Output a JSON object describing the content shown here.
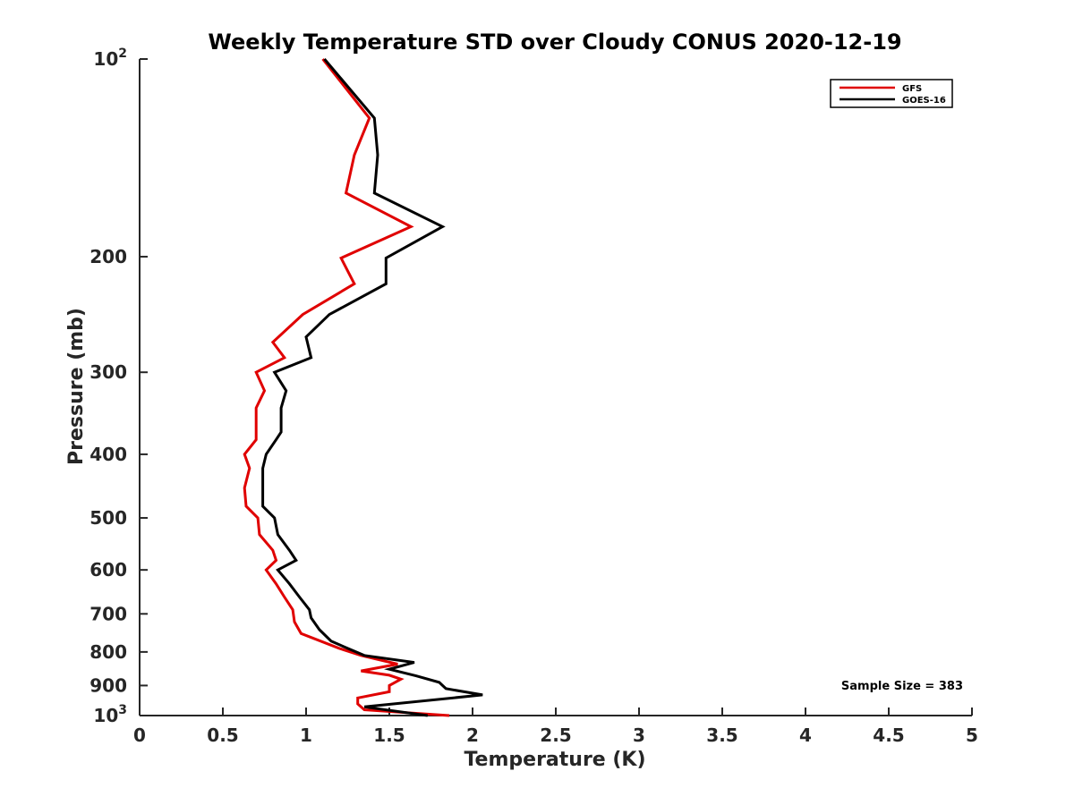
{
  "chart_data": {
    "type": "line",
    "title": "Weekly Temperature STD over Cloudy CONUS 2020-12-19",
    "xlabel": "Temperature (K)",
    "ylabel": "Pressure (mb)",
    "xlim": [
      0,
      5
    ],
    "ylim": [
      100,
      1000
    ],
    "y_scale": "log",
    "y_reversed": true,
    "x_ticks": [
      "0",
      "0.5",
      "1",
      "1.5",
      "2",
      "2.5",
      "3",
      "3.5",
      "4",
      "4.5",
      "5"
    ],
    "y_ticks": [
      {
        "value": 100,
        "label": "10",
        "sup": "2"
      },
      {
        "value": 200,
        "label": "200",
        "sup": ""
      },
      {
        "value": 300,
        "label": "300",
        "sup": ""
      },
      {
        "value": 400,
        "label": "400",
        "sup": ""
      },
      {
        "value": 500,
        "label": "500",
        "sup": ""
      },
      {
        "value": 600,
        "label": "600",
        "sup": ""
      },
      {
        "value": 700,
        "label": "700",
        "sup": ""
      },
      {
        "value": 800,
        "label": "800",
        "sup": ""
      },
      {
        "value": 900,
        "label": "900",
        "sup": ""
      },
      {
        "value": 1000,
        "label": "10",
        "sup": "3"
      }
    ],
    "grid": false,
    "legend_position": "top-right",
    "annotation": "Sample Size = 383",
    "series": [
      {
        "name": "GFS",
        "color": "#e00000",
        "points": [
          [
            1.1,
            100
          ],
          [
            1.38,
            123
          ],
          [
            1.29,
            140
          ],
          [
            1.24,
            160
          ],
          [
            1.63,
            180
          ],
          [
            1.21,
            201
          ],
          [
            1.29,
            220
          ],
          [
            0.98,
            245
          ],
          [
            0.8,
            270
          ],
          [
            0.87,
            285
          ],
          [
            0.7,
            300
          ],
          [
            0.75,
            320
          ],
          [
            0.7,
            340
          ],
          [
            0.7,
            380
          ],
          [
            0.63,
            400
          ],
          [
            0.66,
            420
          ],
          [
            0.63,
            450
          ],
          [
            0.64,
            480
          ],
          [
            0.71,
            500
          ],
          [
            0.72,
            530
          ],
          [
            0.8,
            560
          ],
          [
            0.82,
            580
          ],
          [
            0.76,
            600
          ],
          [
            0.82,
            630
          ],
          [
            0.87,
            660
          ],
          [
            0.92,
            690
          ],
          [
            0.93,
            720
          ],
          [
            0.97,
            750
          ],
          [
            1.2,
            790
          ],
          [
            1.33,
            810
          ],
          [
            1.55,
            835
          ],
          [
            1.33,
            855
          ],
          [
            1.5,
            868
          ],
          [
            1.57,
            880
          ],
          [
            1.5,
            900
          ],
          [
            1.5,
            920
          ],
          [
            1.31,
            940
          ],
          [
            1.31,
            960
          ],
          [
            1.35,
            980
          ],
          [
            1.86,
            1000
          ]
        ]
      },
      {
        "name": "GOES-16",
        "color": "#000000",
        "points": [
          [
            1.11,
            100
          ],
          [
            1.41,
            123
          ],
          [
            1.43,
            140
          ],
          [
            1.41,
            160
          ],
          [
            1.82,
            180
          ],
          [
            1.48,
            201
          ],
          [
            1.48,
            220
          ],
          [
            1.14,
            245
          ],
          [
            1.0,
            265
          ],
          [
            1.03,
            285
          ],
          [
            0.81,
            300
          ],
          [
            0.88,
            320
          ],
          [
            0.85,
            340
          ],
          [
            0.85,
            370
          ],
          [
            0.82,
            380
          ],
          [
            0.76,
            400
          ],
          [
            0.74,
            420
          ],
          [
            0.74,
            450
          ],
          [
            0.74,
            480
          ],
          [
            0.81,
            500
          ],
          [
            0.83,
            530
          ],
          [
            0.9,
            560
          ],
          [
            0.94,
            580
          ],
          [
            0.83,
            600
          ],
          [
            0.9,
            630
          ],
          [
            0.96,
            660
          ],
          [
            1.02,
            690
          ],
          [
            1.03,
            710
          ],
          [
            1.08,
            740
          ],
          [
            1.15,
            770
          ],
          [
            1.25,
            790
          ],
          [
            1.35,
            810
          ],
          [
            1.65,
            830
          ],
          [
            1.5,
            850
          ],
          [
            1.66,
            870
          ],
          [
            1.8,
            890
          ],
          [
            1.84,
            910
          ],
          [
            2.06,
            930
          ],
          [
            1.35,
            970
          ],
          [
            1.73,
            1000
          ]
        ]
      }
    ]
  }
}
